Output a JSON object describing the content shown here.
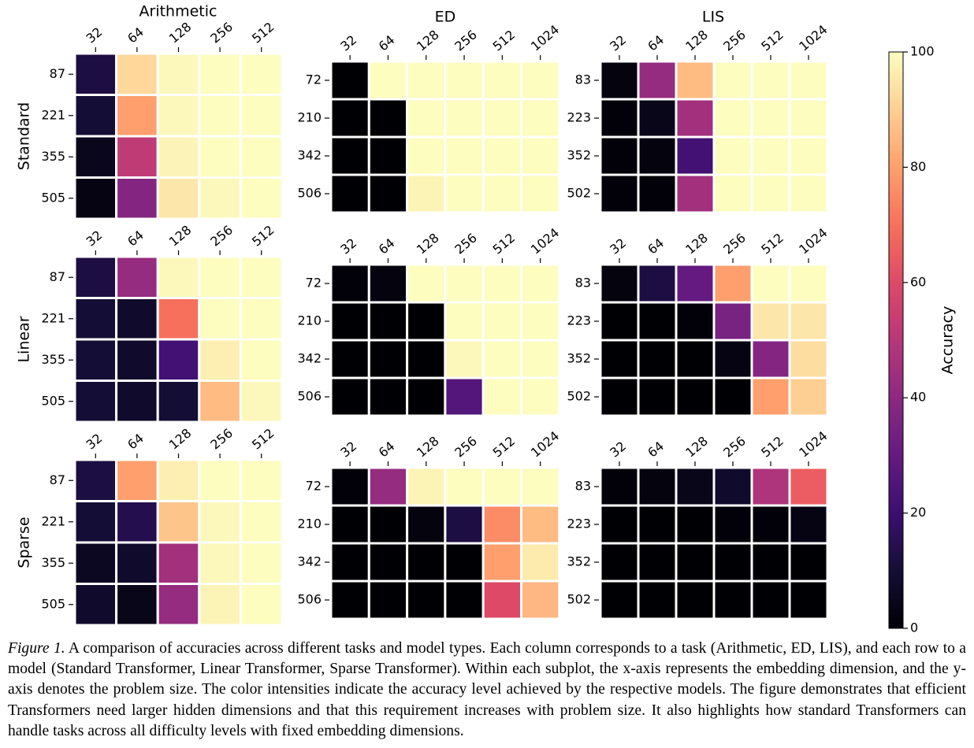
{
  "chart_data": [
    {
      "type": "heatmap",
      "title": "Arithmetic",
      "ylabel": "Standard",
      "x_categories": [
        "32",
        "64",
        "128",
        "256",
        "512"
      ],
      "y_categories": [
        "87",
        "221",
        "355",
        "505"
      ],
      "values": [
        [
          12,
          92,
          99,
          100,
          100
        ],
        [
          10,
          80,
          99,
          100,
          100
        ],
        [
          5,
          52,
          98,
          100,
          100
        ],
        [
          3,
          38,
          95,
          99,
          100
        ]
      ]
    },
    {
      "type": "heatmap",
      "title": "ED",
      "x_categories": [
        "32",
        "64",
        "128",
        "256",
        "512",
        "1024"
      ],
      "y_categories": [
        "72",
        "210",
        "342",
        "506"
      ],
      "values": [
        [
          0,
          100,
          100,
          100,
          100,
          100
        ],
        [
          0,
          0,
          100,
          100,
          100,
          100
        ],
        [
          0,
          0,
          100,
          100,
          100,
          100
        ],
        [
          0,
          0,
          98,
          100,
          100,
          100
        ]
      ]
    },
    {
      "type": "heatmap",
      "title": "LIS",
      "x_categories": [
        "32",
        "64",
        "128",
        "256",
        "512",
        "1024"
      ],
      "y_categories": [
        "83",
        "223",
        "352",
        "502"
      ],
      "values": [
        [
          2,
          42,
          86,
          100,
          100,
          100
        ],
        [
          1,
          4,
          45,
          100,
          100,
          100
        ],
        [
          1,
          2,
          22,
          100,
          100,
          100
        ],
        [
          1,
          1,
          45,
          100,
          100,
          100
        ]
      ]
    },
    {
      "type": "heatmap",
      "ylabel": "Linear",
      "x_categories": [
        "32",
        "64",
        "128",
        "256",
        "512"
      ],
      "y_categories": [
        "87",
        "221",
        "355",
        "505"
      ],
      "values": [
        [
          12,
          42,
          99,
          100,
          100
        ],
        [
          10,
          8,
          70,
          100,
          100
        ],
        [
          10,
          8,
          22,
          97,
          100
        ],
        [
          10,
          8,
          10,
          86,
          99
        ]
      ]
    },
    {
      "type": "heatmap",
      "x_categories": [
        "32",
        "64",
        "128",
        "256",
        "512",
        "1024"
      ],
      "y_categories": [
        "72",
        "210",
        "342",
        "506"
      ],
      "values": [
        [
          1,
          2,
          100,
          100,
          100,
          100
        ],
        [
          0,
          0,
          0,
          100,
          100,
          100
        ],
        [
          0,
          0,
          0,
          99,
          100,
          100
        ],
        [
          0,
          0,
          0,
          26,
          100,
          100
        ]
      ]
    },
    {
      "type": "heatmap",
      "x_categories": [
        "32",
        "64",
        "128",
        "256",
        "512",
        "1024"
      ],
      "y_categories": [
        "83",
        "223",
        "352",
        "502"
      ],
      "values": [
        [
          2,
          12,
          30,
          80,
          100,
          100
        ],
        [
          0,
          0,
          1,
          35,
          95,
          95
        ],
        [
          0,
          0,
          0,
          3,
          38,
          93
        ],
        [
          0,
          0,
          0,
          0,
          80,
          90
        ]
      ]
    },
    {
      "type": "heatmap",
      "ylabel": "Sparse",
      "x_categories": [
        "32",
        "64",
        "128",
        "256",
        "512"
      ],
      "y_categories": [
        "87",
        "221",
        "355",
        "505"
      ],
      "values": [
        [
          12,
          80,
          97,
          100,
          100
        ],
        [
          10,
          14,
          88,
          99,
          100
        ],
        [
          6,
          8,
          45,
          99,
          100
        ],
        [
          8,
          4,
          42,
          98,
          100
        ]
      ]
    },
    {
      "type": "heatmap",
      "x_categories": [
        "32",
        "64",
        "128",
        "256",
        "512",
        "1024"
      ],
      "y_categories": [
        "72",
        "210",
        "342",
        "506"
      ],
      "values": [
        [
          1,
          42,
          98,
          100,
          100,
          100
        ],
        [
          0,
          0,
          2,
          12,
          76,
          86
        ],
        [
          0,
          0,
          0,
          0,
          80,
          96
        ],
        [
          0,
          0,
          0,
          0,
          60,
          85
        ]
      ]
    },
    {
      "type": "heatmap",
      "x_categories": [
        "32",
        "64",
        "128",
        "256",
        "512",
        "1024"
      ],
      "y_categories": [
        "83",
        "223",
        "352",
        "502"
      ],
      "values": [
        [
          1,
          2,
          4,
          8,
          48,
          65
        ],
        [
          0,
          0,
          0,
          1,
          1,
          3
        ],
        [
          0,
          0,
          0,
          0,
          0,
          0
        ],
        [
          0,
          0,
          0,
          0,
          0,
          0
        ]
      ]
    }
  ],
  "colorbar": {
    "label": "Accuracy",
    "colormap": "magma",
    "lim": [
      0,
      100
    ],
    "ticks": [
      0,
      20,
      40,
      60,
      80,
      100
    ]
  },
  "caption": {
    "label": "Figure 1.",
    "text": " A comparison of accuracies across different tasks and model types. Each column corresponds to a task (Arithmetic, ED, LIS), and each row to a model (Standard Transformer, Linear Transformer, Sparse Transformer). Within each subplot, the x-axis represents the embedding dimension, and the y-axis denotes the problem size. The color intensities indicate the accuracy level achieved by the respective models. The figure demonstrates that efficient Transformers need larger hidden dimensions and that this requirement increases with problem size. It also highlights how standard Transformers can handle tasks across all difficulty levels with fixed embedding dimensions."
  }
}
